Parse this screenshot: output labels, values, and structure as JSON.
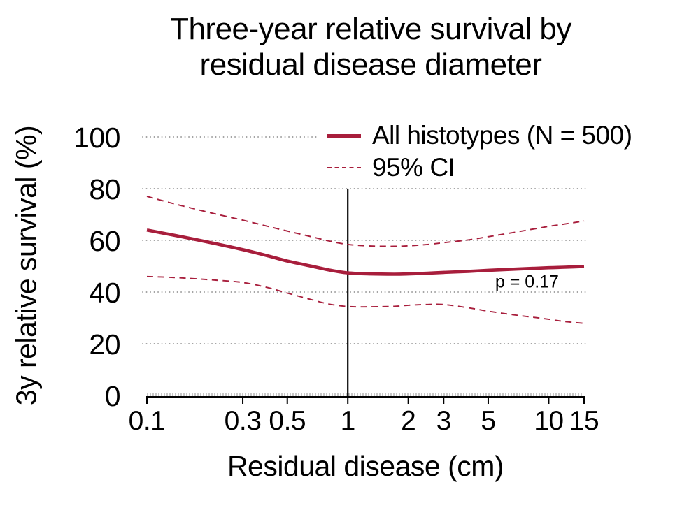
{
  "figure": {
    "title_line1": "Three-year relative survival by",
    "title_line2": "residual disease diameter"
  },
  "chart_data": {
    "type": "line",
    "title": "Three-year relative survival by residual disease diameter",
    "xlabel": "Residual disease (cm)",
    "ylabel": "3y relative survival (%)",
    "x_scale": "log10",
    "xlim": [
      0.1,
      15
    ],
    "ylim": [
      0,
      100
    ],
    "x_ticks": [
      "0.1",
      "0.3",
      "0.5",
      "1",
      "2",
      "3",
      "5",
      "10",
      "15"
    ],
    "y_ticks": [
      "0",
      "20",
      "40",
      "60",
      "80",
      "100"
    ],
    "gridlines_y": [
      20,
      40,
      60,
      80,
      100
    ],
    "grid_style": "dotted-horizontal",
    "legend_position": "top-right-inside",
    "observation_rug": true,
    "reference_line": {
      "x": 1,
      "y_top": 80,
      "y_bottom": 0
    },
    "annotation": {
      "text": "p = 0.17",
      "x": 7.8,
      "y": 43.8
    },
    "legend": [
      {
        "label": "All histotypes (N = 500)",
        "style": "solid"
      },
      {
        "label": "95% CI",
        "style": "dashed"
      }
    ],
    "x": [
      0.1,
      0.13,
      0.17,
      0.22,
      0.3,
      0.4,
      0.5,
      0.65,
      0.8,
      1,
      1.3,
      1.7,
      2,
      2.5,
      3,
      4,
      5,
      7,
      10,
      12,
      15
    ],
    "series": [
      {
        "name": "All histotypes (N = 500)",
        "style": "solid",
        "values": [
          64.0,
          62.3,
          60.5,
          58.7,
          56.4,
          54.0,
          52.0,
          50.1,
          48.6,
          47.4,
          47.0,
          46.9,
          47.0,
          47.3,
          47.6,
          48.0,
          48.4,
          48.9,
          49.4,
          49.6,
          49.9
        ]
      },
      {
        "name": "95% CI upper",
        "style": "dashed",
        "values": [
          77.0,
          74.6,
          72.3,
          70.2,
          67.8,
          65.4,
          63.6,
          61.5,
          59.8,
          58.4,
          57.8,
          57.7,
          57.9,
          58.4,
          59.1,
          60.2,
          61.4,
          63.3,
          65.4,
          66.3,
          67.5
        ]
      },
      {
        "name": "95% CI lower",
        "style": "dashed",
        "values": [
          46.0,
          45.7,
          45.2,
          44.6,
          43.7,
          41.7,
          39.6,
          37.2,
          35.4,
          34.4,
          34.3,
          34.5,
          34.9,
          35.2,
          35.2,
          33.9,
          32.6,
          31.0,
          29.5,
          28.6,
          27.9
        ]
      }
    ],
    "colors": {
      "series": "#A81E3C",
      "grid": "#909090",
      "rug": "#8F8F8F",
      "axis": "#000000",
      "text": "#000000",
      "background": "#FFFFFF"
    }
  }
}
